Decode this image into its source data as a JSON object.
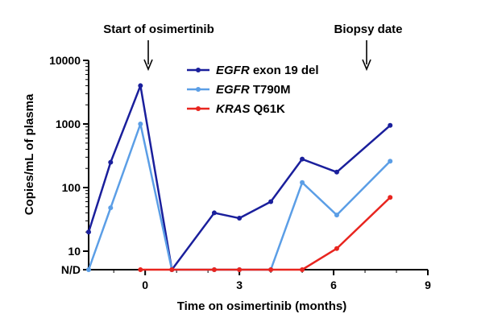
{
  "chart_data": {
    "type": "line",
    "title": "",
    "xlabel": "Time on osimertinib (months)",
    "ylabel": "Copies/mL of plasma",
    "y_scale": "log",
    "xlim": [
      -1.8,
      9
    ],
    "ylim": [
      "N/D",
      10000
    ],
    "x_ticks": [
      "0",
      "3",
      "6",
      "9"
    ],
    "y_ticks": [
      "N/D",
      "10",
      "100",
      "1000",
      "10000"
    ],
    "grid": false,
    "legend_position": "top-center",
    "annotations": [
      {
        "text": "Start of osimertinib",
        "x": 0
      },
      {
        "text": "Biopsy date",
        "x": 7.3
      }
    ],
    "series": [
      {
        "name_italic": "EGFR",
        "name_rest": " exon 19 del",
        "color": "#1a1f9c",
        "points": [
          [
            -1.8,
            20
          ],
          [
            -1.1,
            250
          ],
          [
            -0.15,
            4000
          ],
          [
            0.85,
            "N/D"
          ],
          [
            2.2,
            40
          ],
          [
            3.0,
            33
          ],
          [
            4.0,
            60
          ],
          [
            5.0,
            280
          ],
          [
            6.1,
            175
          ],
          [
            7.8,
            950
          ]
        ]
      },
      {
        "name_italic": "EGFR",
        "name_rest": " T790M",
        "color": "#5b9ee6",
        "points": [
          [
            -1.8,
            "N/D"
          ],
          [
            -1.1,
            48
          ],
          [
            -0.15,
            1000
          ],
          [
            0.85,
            "N/D"
          ],
          [
            2.2,
            "N/D"
          ],
          [
            3.0,
            "N/D"
          ],
          [
            4.0,
            "N/D"
          ],
          [
            5.0,
            120
          ],
          [
            6.1,
            37
          ],
          [
            7.8,
            260
          ]
        ]
      },
      {
        "name_italic": "KRAS",
        "name_rest": " Q61K",
        "color": "#e8251f",
        "points": [
          [
            -0.15,
            "N/D"
          ],
          [
            0.85,
            "N/D"
          ],
          [
            2.2,
            "N/D"
          ],
          [
            3.0,
            "N/D"
          ],
          [
            4.0,
            "N/D"
          ],
          [
            5.0,
            "N/D"
          ],
          [
            6.1,
            11
          ],
          [
            7.8,
            70
          ]
        ]
      }
    ]
  }
}
